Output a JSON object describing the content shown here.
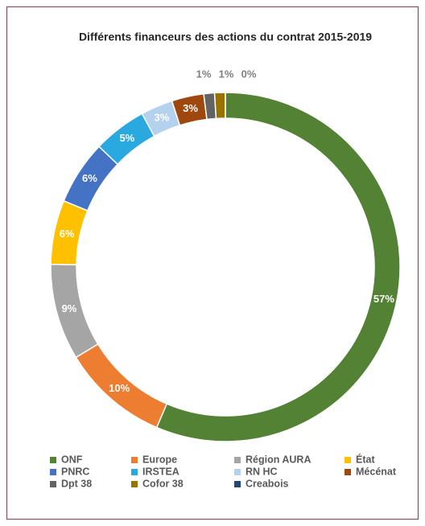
{
  "chart_data": {
    "type": "donut",
    "title": "Différents financeurs des actions du contrat 2015-2019",
    "categories": [
      "ONF",
      "Europe",
      "Région AURA",
      "État",
      "PNRC",
      "IRSTEA",
      "RN HC",
      "Mécénat",
      "Dpt 38",
      "Cofor 38",
      "Creabois"
    ],
    "values": [
      57,
      10,
      9,
      6,
      6,
      5,
      3,
      3,
      1,
      1,
      0
    ],
    "value_labels": [
      "57%",
      "10%",
      "9%",
      "6%",
      "6%",
      "5%",
      "3%",
      "3%",
      "1%",
      "1%",
      "0%"
    ],
    "colors": [
      "#548235",
      "#ed7d31",
      "#a5a5a5",
      "#ffc000",
      "#4472c4",
      "#29a9df",
      "#b4d2ee",
      "#9e480e",
      "#636363",
      "#997300",
      "#264478"
    ],
    "legend": "bottom"
  }
}
